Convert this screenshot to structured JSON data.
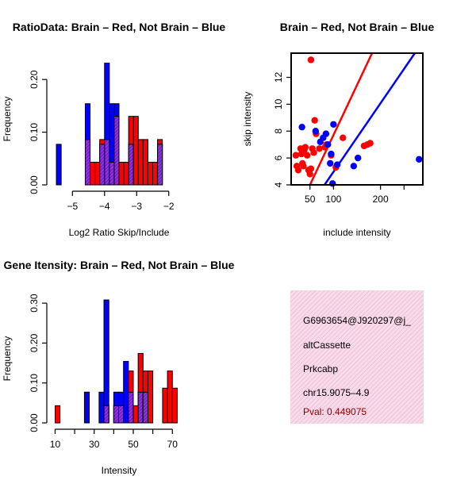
{
  "colors": {
    "red": "#ff0000",
    "blue": "#0000ff",
    "purple": "#8a2be2",
    "pink": "#f6d7e6",
    "pval": "#8b0000"
  },
  "chart_data": [
    {
      "type": "bar",
      "title": "RatioData: Brain – Red, Not Brain – Blue",
      "xlabel": "Log2 Ratio Skip/Include",
      "ylabel": "Frequency",
      "xlim": [
        -5.6,
        -1.45
      ],
      "ylim": [
        0,
        0.25
      ],
      "xticks": [
        -5,
        -4,
        -3,
        -2
      ],
      "xtick_labels": [
        "−5",
        "−4",
        "−3",
        "−2"
      ],
      "yticks": [
        0,
        0.1,
        0.2
      ],
      "ytick_labels": [
        "0.00",
        "0.10",
        "0.20"
      ],
      "bin_edges": [
        -5.5,
        -5.35,
        -5.2,
        -5.05,
        -4.9,
        -4.75,
        -4.6,
        -4.45,
        -4.3,
        -4.15,
        -4.0,
        -3.85,
        -3.7,
        -3.55,
        -3.4,
        -3.25,
        -3.1,
        -2.95,
        -2.8,
        -2.65,
        -2.5,
        -2.35,
        -2.2,
        -2.05,
        -1.9,
        -1.75,
        -1.6
      ],
      "series": [
        {
          "name": "Not Brain",
          "color": "blue",
          "values": [
            0.077,
            0,
            0,
            0,
            0,
            0,
            0.154,
            0,
            0,
            0.077,
            0.231,
            0.154,
            0.154,
            0,
            0,
            0.077,
            0,
            0,
            0,
            0,
            0,
            0.077,
            0,
            0,
            0,
            0
          ]
        },
        {
          "name": "Brain",
          "color": "red",
          "values": [
            0,
            0,
            0,
            0,
            0,
            0,
            0.086,
            0.043,
            0.043,
            0.086,
            0.086,
            0.043,
            0.13,
            0.043,
            0.043,
            0.13,
            0.13,
            0.086,
            0.086,
            0.043,
            0.043,
            0.086,
            0,
            0,
            0,
            0
          ]
        }
      ]
    },
    {
      "type": "scatter",
      "title": "Brain – Red, Not Brain – Blue",
      "xlabel": "include intensity",
      "ylabel": "skip intensity",
      "xlim": [
        10,
        290
      ],
      "ylim": [
        4,
        13.8
      ],
      "xticks": [
        50,
        100,
        200
      ],
      "xtick_labels": [
        "50",
        "100",
        "200"
      ],
      "extra_xticks": [
        250
      ],
      "yticks": [
        4,
        6,
        8,
        10,
        12
      ],
      "ytick_labels": [
        "4",
        "6",
        "8",
        "10",
        "12"
      ],
      "series": [
        {
          "name": "Brain",
          "color": "red",
          "points": [
            [
              52,
              13.3
            ],
            [
              20,
              6.2
            ],
            [
              22,
              5.4
            ],
            [
              25,
              5.1
            ],
            [
              30,
              6.7
            ],
            [
              32,
              6.3
            ],
            [
              34,
              5.6
            ],
            [
              36,
              5.4
            ],
            [
              38,
              6.6
            ],
            [
              40,
              6.8
            ],
            [
              44,
              6.2
            ],
            [
              47,
              5.1
            ],
            [
              50,
              4.8
            ],
            [
              52,
              5.2
            ],
            [
              55,
              6.7
            ],
            [
              58,
              6.4
            ],
            [
              60,
              8.8
            ],
            [
              63,
              7.8
            ],
            [
              70,
              6.7
            ],
            [
              82,
              6.8
            ],
            [
              85,
              7.0
            ],
            [
              95,
              6.2
            ],
            [
              105,
              5.3
            ],
            [
              120,
              7.5
            ],
            [
              165,
              6.9
            ],
            [
              172,
              7.0
            ],
            [
              178,
              7.1
            ]
          ]
        },
        {
          "name": "Not Brain",
          "color": "blue",
          "points": [
            [
              33,
              8.3
            ],
            [
              62,
              8.0
            ],
            [
              72,
              7.2
            ],
            [
              78,
              7.5
            ],
            [
              84,
              7.8
            ],
            [
              88,
              7.0
            ],
            [
              93,
              5.6
            ],
            [
              95,
              6.3
            ],
            [
              98,
              4.1
            ],
            [
              100,
              8.5
            ],
            [
              108,
              5.5
            ],
            [
              143,
              5.4
            ],
            [
              152,
              6.0
            ],
            [
              282,
              5.9
            ]
          ]
        }
      ],
      "lines": [
        {
          "name": "Brain fit",
          "color": "red",
          "from": [
            50,
            4.0
          ],
          "to": [
            182,
            13.8
          ]
        },
        {
          "name": "Not Brain fit",
          "color": "blue",
          "from": [
            81,
            4.0
          ],
          "to": [
            273,
            13.8
          ]
        }
      ]
    },
    {
      "type": "bar",
      "title": "Gene Itensity: Brain – Red, Not Brain – Blue",
      "xlabel": "Intensity",
      "ylabel": "Frequency",
      "xlim": [
        9,
        77.2
      ],
      "ylim": [
        0,
        0.33
      ],
      "xticks": [
        10,
        20,
        30,
        40,
        50,
        60,
        70
      ],
      "xtick_labels": [
        "10",
        "",
        "30",
        "",
        "50",
        "",
        "70"
      ],
      "yticks": [
        0,
        0.1,
        0.2,
        0.3
      ],
      "ytick_labels": [
        "0.00",
        "0.10",
        "0.20",
        "0.30"
      ],
      "bin_edges": [
        10,
        12.5,
        15,
        17.5,
        20,
        22.5,
        25,
        27.5,
        30,
        32.5,
        35,
        37.5,
        40,
        42.5,
        45,
        47.5,
        50,
        52.5,
        55,
        57.5,
        60,
        62.5,
        65,
        67.5,
        70,
        72.5,
        75
      ],
      "series": [
        {
          "name": "Not Brain",
          "color": "blue",
          "values": [
            0,
            0,
            0,
            0,
            0,
            0,
            0.077,
            0,
            0,
            0.077,
            0.308,
            0,
            0.077,
            0.077,
            0.154,
            0.077,
            0,
            0.077,
            0.077,
            0,
            0,
            0,
            0,
            0,
            0,
            0
          ]
        },
        {
          "name": "Brain",
          "color": "red",
          "values": [
            0.043,
            0,
            0,
            0,
            0,
            0,
            0,
            0,
            0,
            0,
            0.043,
            0,
            0.043,
            0.043,
            0,
            0.13,
            0.043,
            0.174,
            0.13,
            0.13,
            0,
            0,
            0.087,
            0.13,
            0.087,
            0
          ]
        }
      ]
    }
  ],
  "info": {
    "lines": [
      "G6963654@J920297@j_",
      "altCassette",
      "Prkcabp",
      "chr15.9075–4.9"
    ],
    "pval": "Pval: 0.449075"
  }
}
